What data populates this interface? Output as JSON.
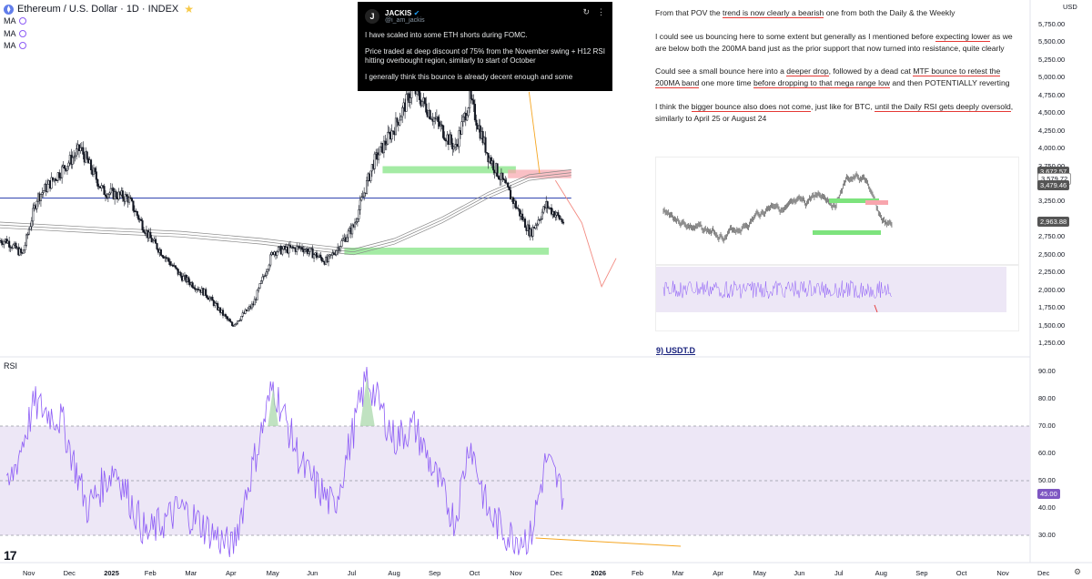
{
  "header": {
    "symbol_title": "Ethereum / U.S. Dollar · 1D · INDEX",
    "symbol_icon": "ethereum-icon",
    "fav_icon": "star-icon",
    "indicators": [
      "MA",
      "MA",
      "MA"
    ]
  },
  "rsi_panel": {
    "title": "RSI",
    "current_value": "45.00",
    "axis_labels": [
      "90.00",
      "80.00",
      "70.00",
      "60.00",
      "50.00",
      "40.00",
      "30.00"
    ],
    "axis_values": [
      90,
      80,
      70,
      60,
      50,
      40,
      30
    ],
    "upper_band": 70,
    "lower_band": 30,
    "mid_band": 50
  },
  "price_axis": {
    "currency": "USD",
    "labels": [
      "5,750.00",
      "5,500.00",
      "5,250.00",
      "5,000.00",
      "4,750.00",
      "4,500.00",
      "4,250.00",
      "4,000.00",
      "3,750.00",
      "3,500.00",
      "3,250.00",
      "3,000.00",
      "2,750.00",
      "2,500.00",
      "2,250.00",
      "2,000.00",
      "1,750.00",
      "1,500.00",
      "1,250.00"
    ],
    "values": [
      5750,
      5500,
      5250,
      5000,
      4750,
      4500,
      4250,
      4000,
      3750,
      3500,
      3250,
      3000,
      2750,
      2500,
      2250,
      2000,
      1750,
      1500,
      1250
    ],
    "tags": [
      {
        "label": "3,672.57",
        "value": 3672.57,
        "color": "#555555"
      },
      {
        "label": "3,579.72",
        "value": 3579.72,
        "color": "#ffffff",
        "text_color": "#131722"
      },
      {
        "label": "3,479.46",
        "value": 3479.46,
        "color": "#555555"
      },
      {
        "label": "2,963.88",
        "value": 2963.88,
        "color": "#555555"
      }
    ]
  },
  "time_axis": {
    "labels": [
      "Nov",
      "Dec",
      "2025",
      "Feb",
      "Mar",
      "Apr",
      "May",
      "Jun",
      "Jul",
      "Aug",
      "Sep",
      "Oct",
      "Nov",
      "Dec",
      "2026",
      "Feb",
      "Mar",
      "Apr",
      "May",
      "Jun",
      "Jul",
      "Aug",
      "Sep",
      "Oct",
      "Nov",
      "Dec"
    ]
  },
  "tweet": {
    "name": "JACKIS",
    "handle": "@i_am_jackis",
    "avatar_letter": "J",
    "verified_icon": "verified-badge-icon",
    "body": [
      "I have scaled into some ETH shorts during FOMC.",
      "Price traded at deep discount of 75% from the November swing + H12 RSI hitting overbought region, similarly to start of October",
      "I generally think this bounce is already decent enough and some"
    ]
  },
  "notes": {
    "p1": {
      "a": "From that POV the ",
      "u1": "trend is now clearly a bearish",
      "b": " one from both the Daily & the Weekly"
    },
    "p2": {
      "a": "I could see us bouncing here to some extent but generally as I mentioned before ",
      "u1": "expecting lower",
      "b": " as we are below both the 200MA band just as the prior support that now turned into resistance, quite clearly"
    },
    "p3": {
      "a": "Could see a small bounce here into a ",
      "u1": "deeper drop",
      "b": ", followed by a dead cat ",
      "u2": "MTF bounce to retest the 200MA band",
      "c": " one more time ",
      "u3": "before dropping to that mega range low",
      "d": " and then POTENTIALLY reverting"
    },
    "p4": {
      "a": "I think the ",
      "u1": "bigger bounce also does not come",
      "b": ", just like for BTC, ",
      "u2": "until the Daily RSI gets deeply oversold",
      "c": ", similarly to April 25 or August 24"
    },
    "section_title": "9) USDT.D"
  },
  "colors": {
    "up": "#131722",
    "down": "#131722",
    "resistance_line": "#3f51b5",
    "support_zone": "#7de37d",
    "resistance_zone": "#f8a5ad",
    "rsi_line": "#8d5cf6",
    "rsi_fill": "#ede7f6",
    "projection": "#f28b82",
    "orange_arrow": "#f5a623",
    "rsi_value_bg": "#7e57c2"
  },
  "chart_data": {
    "type": "candlestick",
    "symbol": "Ethereum / U.S. Dollar",
    "interval": "1D",
    "resistance_level": 3300,
    "support_zones": [
      [
        3750,
        3650
      ],
      [
        2600,
        2500
      ]
    ],
    "resistance_zone": [
      3700,
      3580
    ],
    "price_path": [
      {
        "date": "2024-10-20",
        "close": 2700
      },
      {
        "date": "2024-11-01",
        "close": 2500
      },
      {
        "date": "2024-11-12",
        "close": 3300
      },
      {
        "date": "2024-12-01",
        "close": 3700
      },
      {
        "date": "2024-12-15",
        "close": 4000
      },
      {
        "date": "2025-01-01",
        "close": 3400
      },
      {
        "date": "2025-01-20",
        "close": 3300
      },
      {
        "date": "2025-02-05",
        "close": 2750
      },
      {
        "date": "2025-03-01",
        "close": 2200
      },
      {
        "date": "2025-03-20",
        "close": 1950
      },
      {
        "date": "2025-04-09",
        "close": 1500
      },
      {
        "date": "2025-04-25",
        "close": 1800
      },
      {
        "date": "2025-05-10",
        "close": 2550
      },
      {
        "date": "2025-06-01",
        "close": 2600
      },
      {
        "date": "2025-06-20",
        "close": 2400
      },
      {
        "date": "2025-07-10",
        "close": 2900
      },
      {
        "date": "2025-07-25",
        "close": 3800
      },
      {
        "date": "2025-08-10",
        "close": 4300
      },
      {
        "date": "2025-08-24",
        "close": 4850
      },
      {
        "date": "2025-09-10",
        "close": 4400
      },
      {
        "date": "2025-09-25",
        "close": 4000
      },
      {
        "date": "2025-10-06",
        "close": 4700
      },
      {
        "date": "2025-10-20",
        "close": 3900
      },
      {
        "date": "2025-11-04",
        "close": 3400
      },
      {
        "date": "2025-11-21",
        "close": 2800
      },
      {
        "date": "2025-12-03",
        "close": 3200
      },
      {
        "date": "2025-12-16",
        "close": 2960
      }
    ],
    "rsi_path": [
      {
        "date": "2024-10-20",
        "rsi": 45
      },
      {
        "date": "2024-11-10",
        "rsi": 78
      },
      {
        "date": "2024-12-01",
        "rsi": 72
      },
      {
        "date": "2024-12-20",
        "rsi": 40
      },
      {
        "date": "2025-01-10",
        "rsi": 55
      },
      {
        "date": "2025-02-03",
        "rsi": 30
      },
      {
        "date": "2025-03-01",
        "rsi": 40
      },
      {
        "date": "2025-04-09",
        "rsi": 25
      },
      {
        "date": "2025-05-10",
        "rsi": 85
      },
      {
        "date": "2025-06-01",
        "rsi": 55
      },
      {
        "date": "2025-06-25",
        "rsi": 40
      },
      {
        "date": "2025-07-20",
        "rsi": 88
      },
      {
        "date": "2025-08-10",
        "rsi": 65
      },
      {
        "date": "2025-08-25",
        "rsi": 70
      },
      {
        "date": "2025-09-25",
        "rsi": 35
      },
      {
        "date": "2025-10-06",
        "rsi": 65
      },
      {
        "date": "2025-10-20",
        "rsi": 38
      },
      {
        "date": "2025-11-04",
        "rsi": 30
      },
      {
        "date": "2025-11-21",
        "rsi": 29
      },
      {
        "date": "2025-12-03",
        "rsi": 58
      },
      {
        "date": "2025-12-16",
        "rsi": 45
      }
    ]
  }
}
